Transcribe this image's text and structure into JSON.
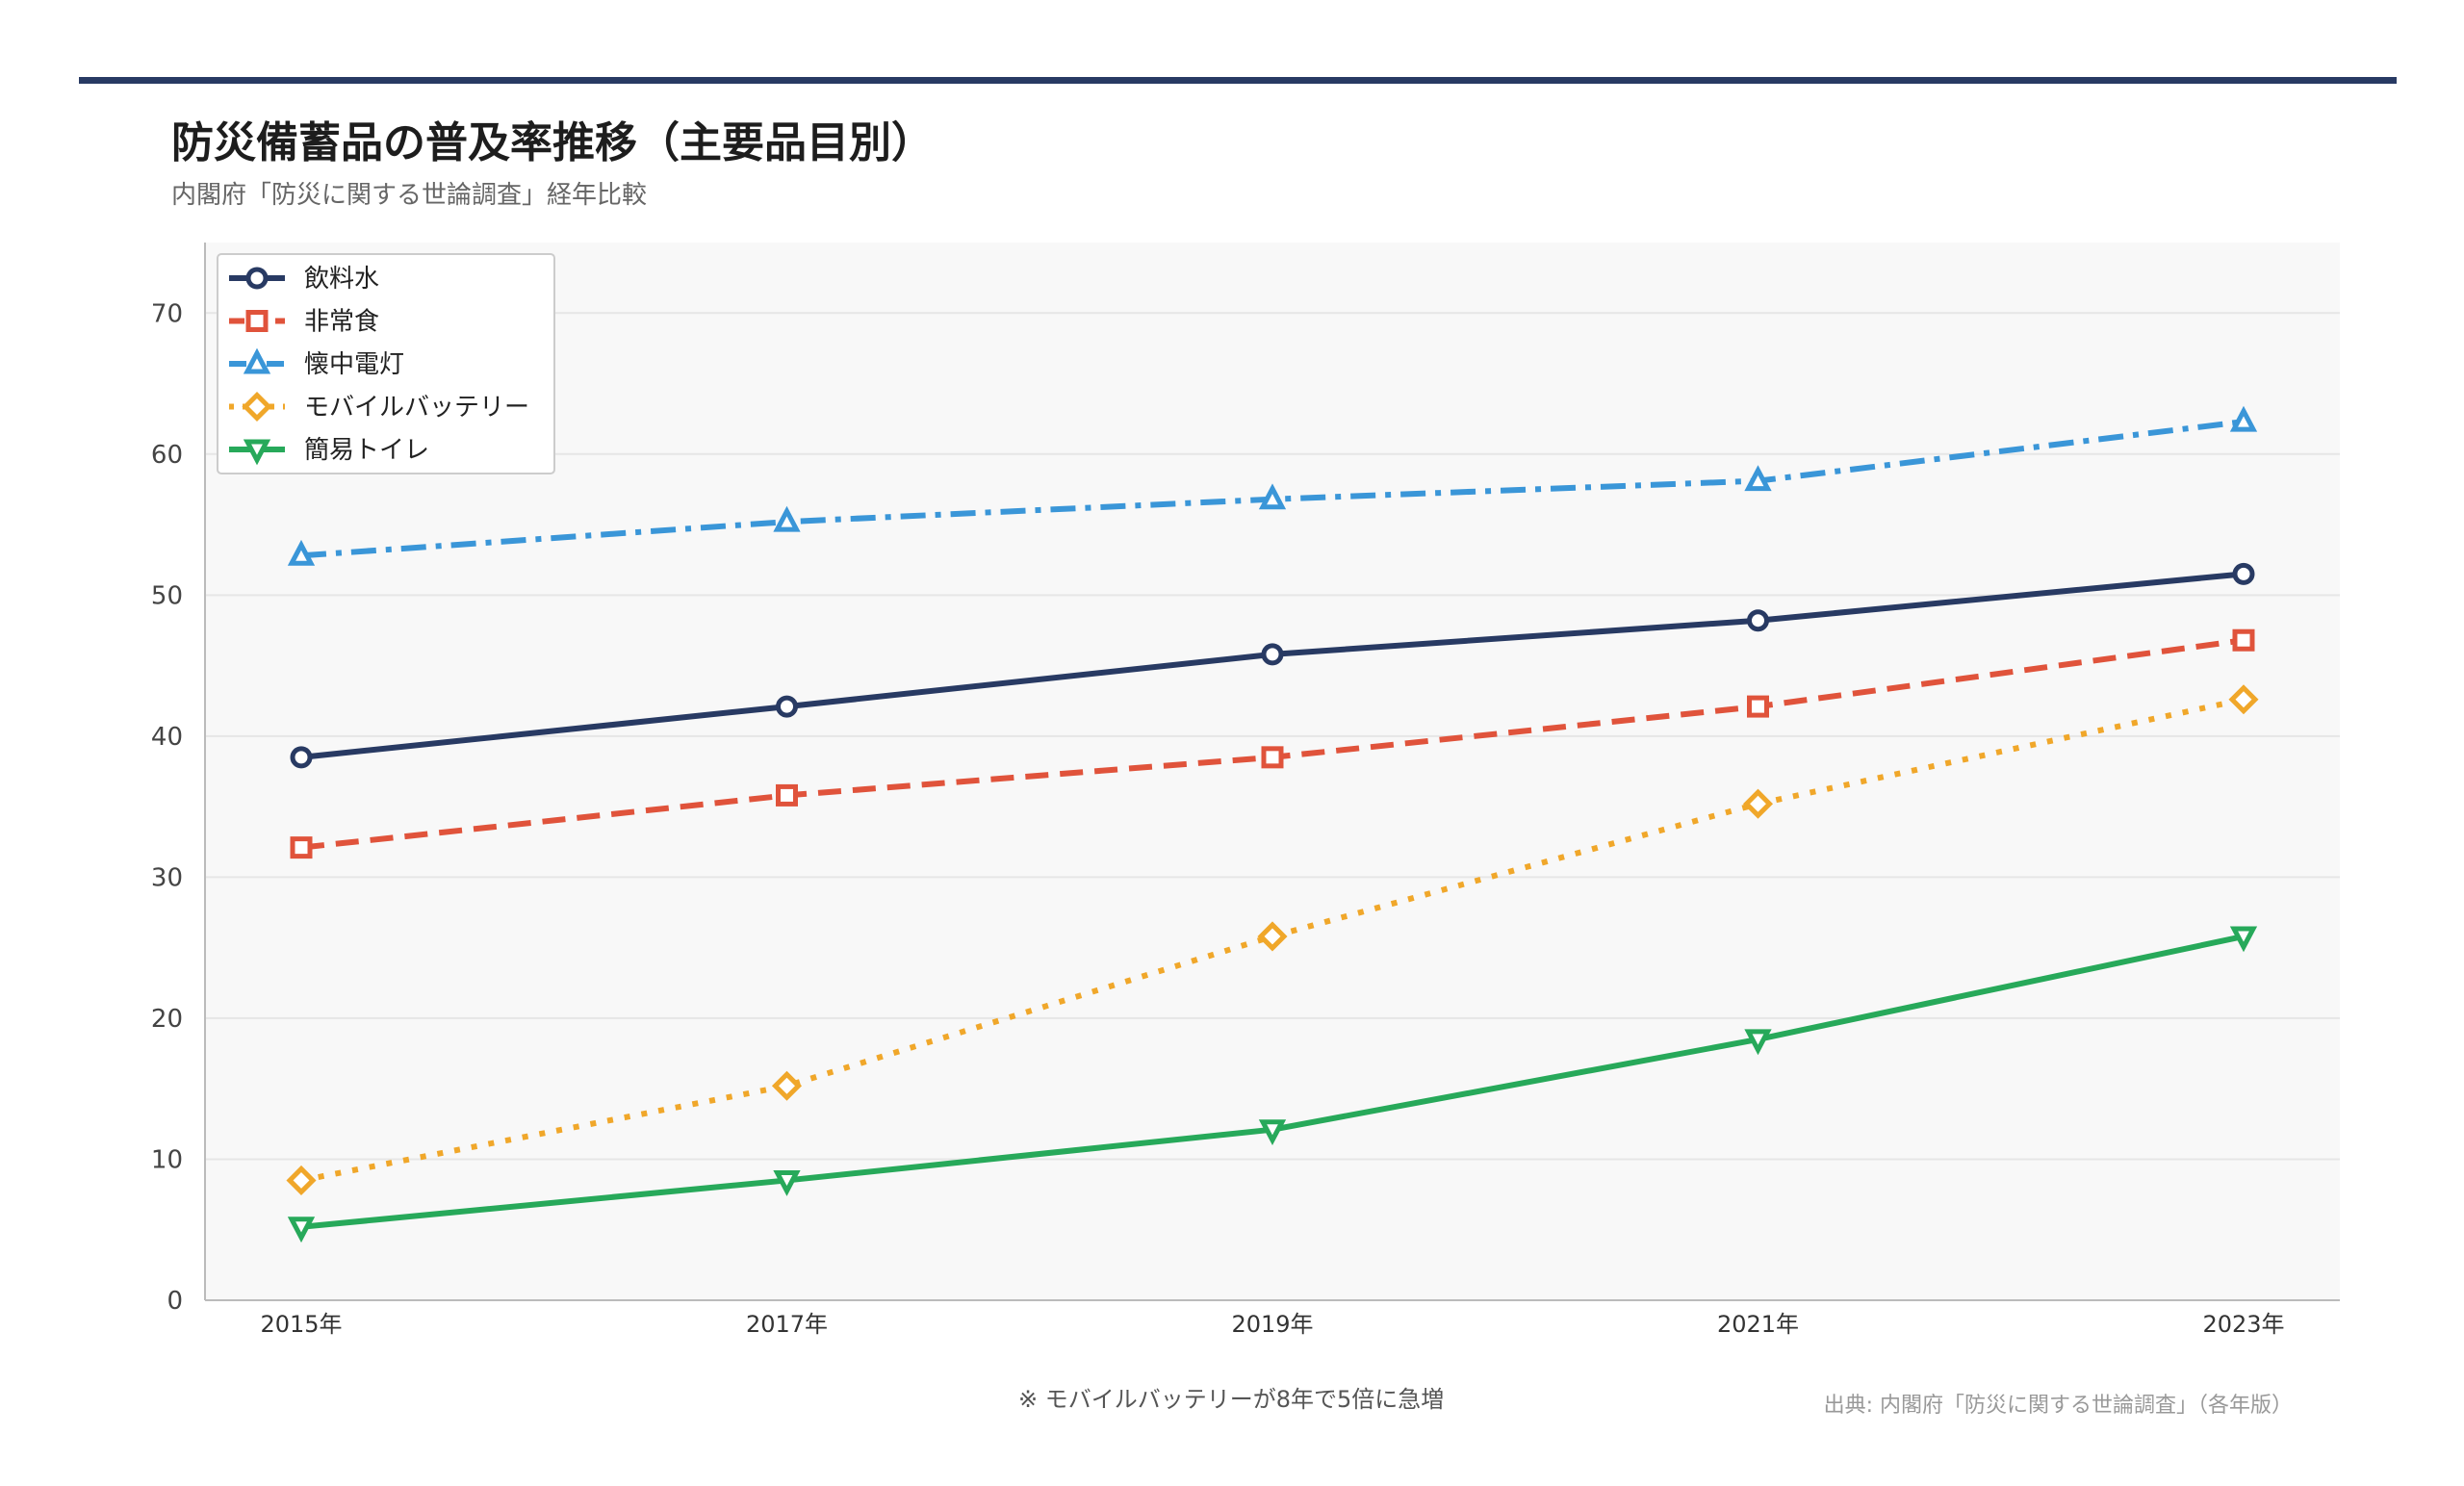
{
  "header": {
    "title": "防災備蓄品の普及率推移（主要品目別）",
    "subtitle": "内閣府「防災に関する世論調査」経年比較"
  },
  "chart_data": {
    "type": "line",
    "x": [
      "2015年",
      "2017年",
      "2019年",
      "2021年",
      "2023年"
    ],
    "ylim": [
      0,
      75
    ],
    "yticks": [
      0,
      10,
      20,
      30,
      40,
      50,
      60,
      70
    ],
    "grid": true,
    "legend_position": "top-left",
    "series": [
      {
        "name": "飲料水",
        "values": [
          38.5,
          42.1,
          45.8,
          48.2,
          51.5
        ],
        "color": "#283a63",
        "marker": "circle",
        "dash": "solid"
      },
      {
        "name": "非常食",
        "values": [
          32.1,
          35.8,
          38.5,
          42.1,
          46.8
        ],
        "color": "#e0533b",
        "marker": "square",
        "dash": "dashed"
      },
      {
        "name": "懐中電灯",
        "values": [
          52.8,
          55.2,
          56.8,
          58.1,
          62.3
        ],
        "color": "#3a96d8",
        "marker": "triangle-up",
        "dash": "dashdot"
      },
      {
        "name": "モバイルバッテリー",
        "values": [
          8.5,
          15.2,
          25.8,
          35.2,
          42.6
        ],
        "color": "#f0a72a",
        "marker": "diamond",
        "dash": "dotted"
      },
      {
        "name": "簡易トイレ",
        "values": [
          5.2,
          8.5,
          12.1,
          18.5,
          25.8
        ],
        "color": "#27a95a",
        "marker": "triangle-down",
        "dash": "solid"
      }
    ]
  },
  "footer": {
    "note": "※ モバイルバッテリーが8年で5倍に急増",
    "source": "出典: 内閣府「防災に関する世論調査」（各年版）"
  }
}
